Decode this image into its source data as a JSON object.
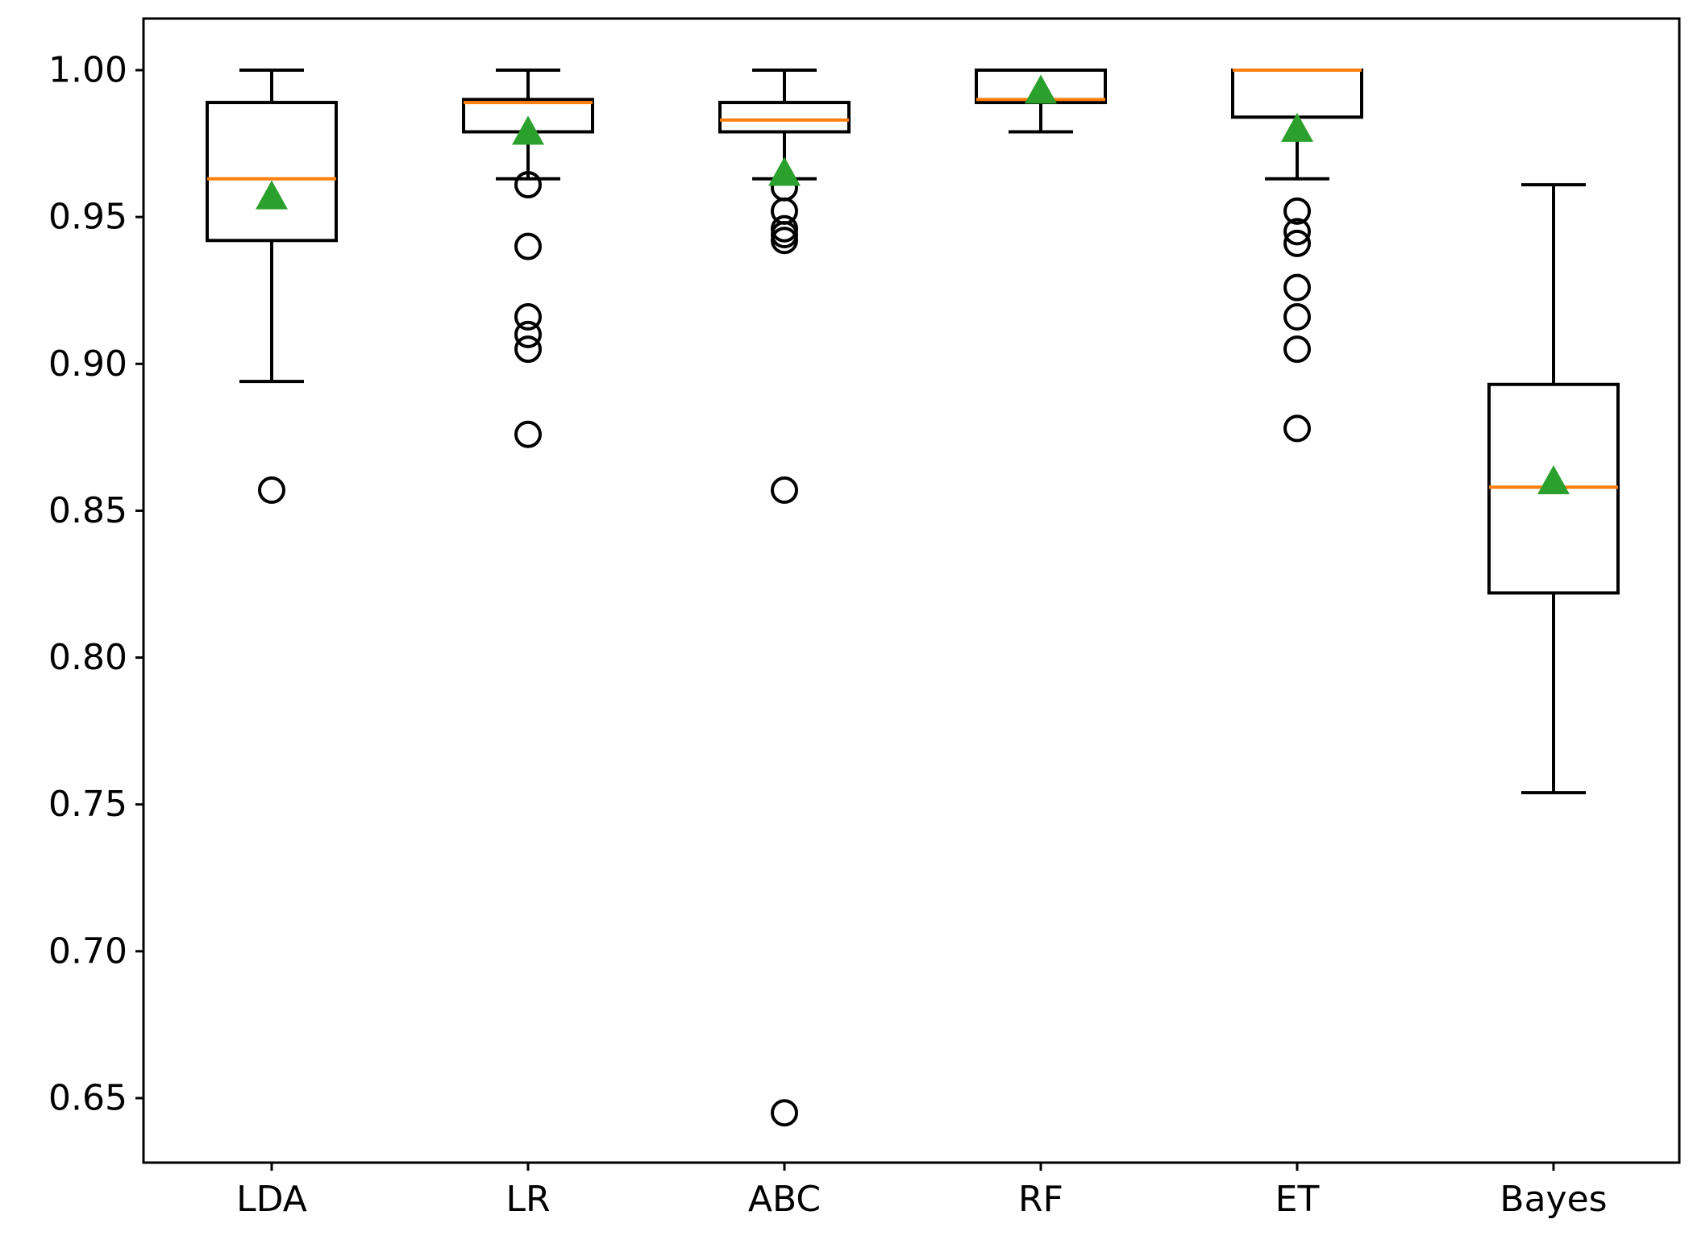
{
  "chart_data": {
    "type": "box",
    "title": "",
    "xlabel": "",
    "ylabel": "",
    "ylim": [
      0.627,
      1.018
    ],
    "yticks": [
      0.65,
      0.7,
      0.75,
      0.8,
      0.85,
      0.9,
      0.95,
      1.0
    ],
    "ytick_labels": [
      "0.65",
      "0.70",
      "0.75",
      "0.80",
      "0.85",
      "0.90",
      "0.95",
      "1.00"
    ],
    "categories": [
      "LDA",
      "LR",
      "ABC",
      "RF",
      "ET",
      "Bayes"
    ],
    "boxes": [
      {
        "name": "LDA",
        "whisker_low": 0.894,
        "q1": 0.942,
        "median": 0.963,
        "q3": 0.989,
        "whisker_high": 1.0,
        "mean": 0.957,
        "outliers": [
          0.857
        ]
      },
      {
        "name": "LR",
        "whisker_low": 0.963,
        "q1": 0.979,
        "median": 0.989,
        "q3": 0.99,
        "whisker_high": 1.0,
        "mean": 0.979,
        "outliers": [
          0.961,
          0.94,
          0.916,
          0.91,
          0.905,
          0.876
        ]
      },
      {
        "name": "ABC",
        "whisker_low": 0.963,
        "q1": 0.979,
        "median": 0.983,
        "q3": 0.989,
        "whisker_high": 1.0,
        "mean": 0.965,
        "outliers": [
          0.96,
          0.952,
          0.946,
          0.944,
          0.942,
          0.857,
          0.645
        ]
      },
      {
        "name": "RF",
        "whisker_low": 0.979,
        "q1": 0.989,
        "median": 0.99,
        "q3": 1.0,
        "whisker_high": 1.0,
        "mean": 0.993,
        "outliers": []
      },
      {
        "name": "ET",
        "whisker_low": 0.963,
        "q1": 0.984,
        "median": 1.0,
        "q3": 1.0,
        "whisker_high": 1.0,
        "mean": 0.98,
        "outliers": [
          0.952,
          0.945,
          0.941,
          0.926,
          0.916,
          0.905,
          0.878
        ]
      },
      {
        "name": "Bayes",
        "whisker_low": 0.754,
        "q1": 0.822,
        "median": 0.858,
        "q3": 0.893,
        "whisker_high": 0.961,
        "mean": 0.86,
        "outliers": []
      }
    ],
    "colors": {
      "box": "#000000",
      "median": "#ff7f0e",
      "mean": "#2ca02c",
      "outlier": "#000000"
    },
    "grid": false,
    "legend": "none"
  }
}
